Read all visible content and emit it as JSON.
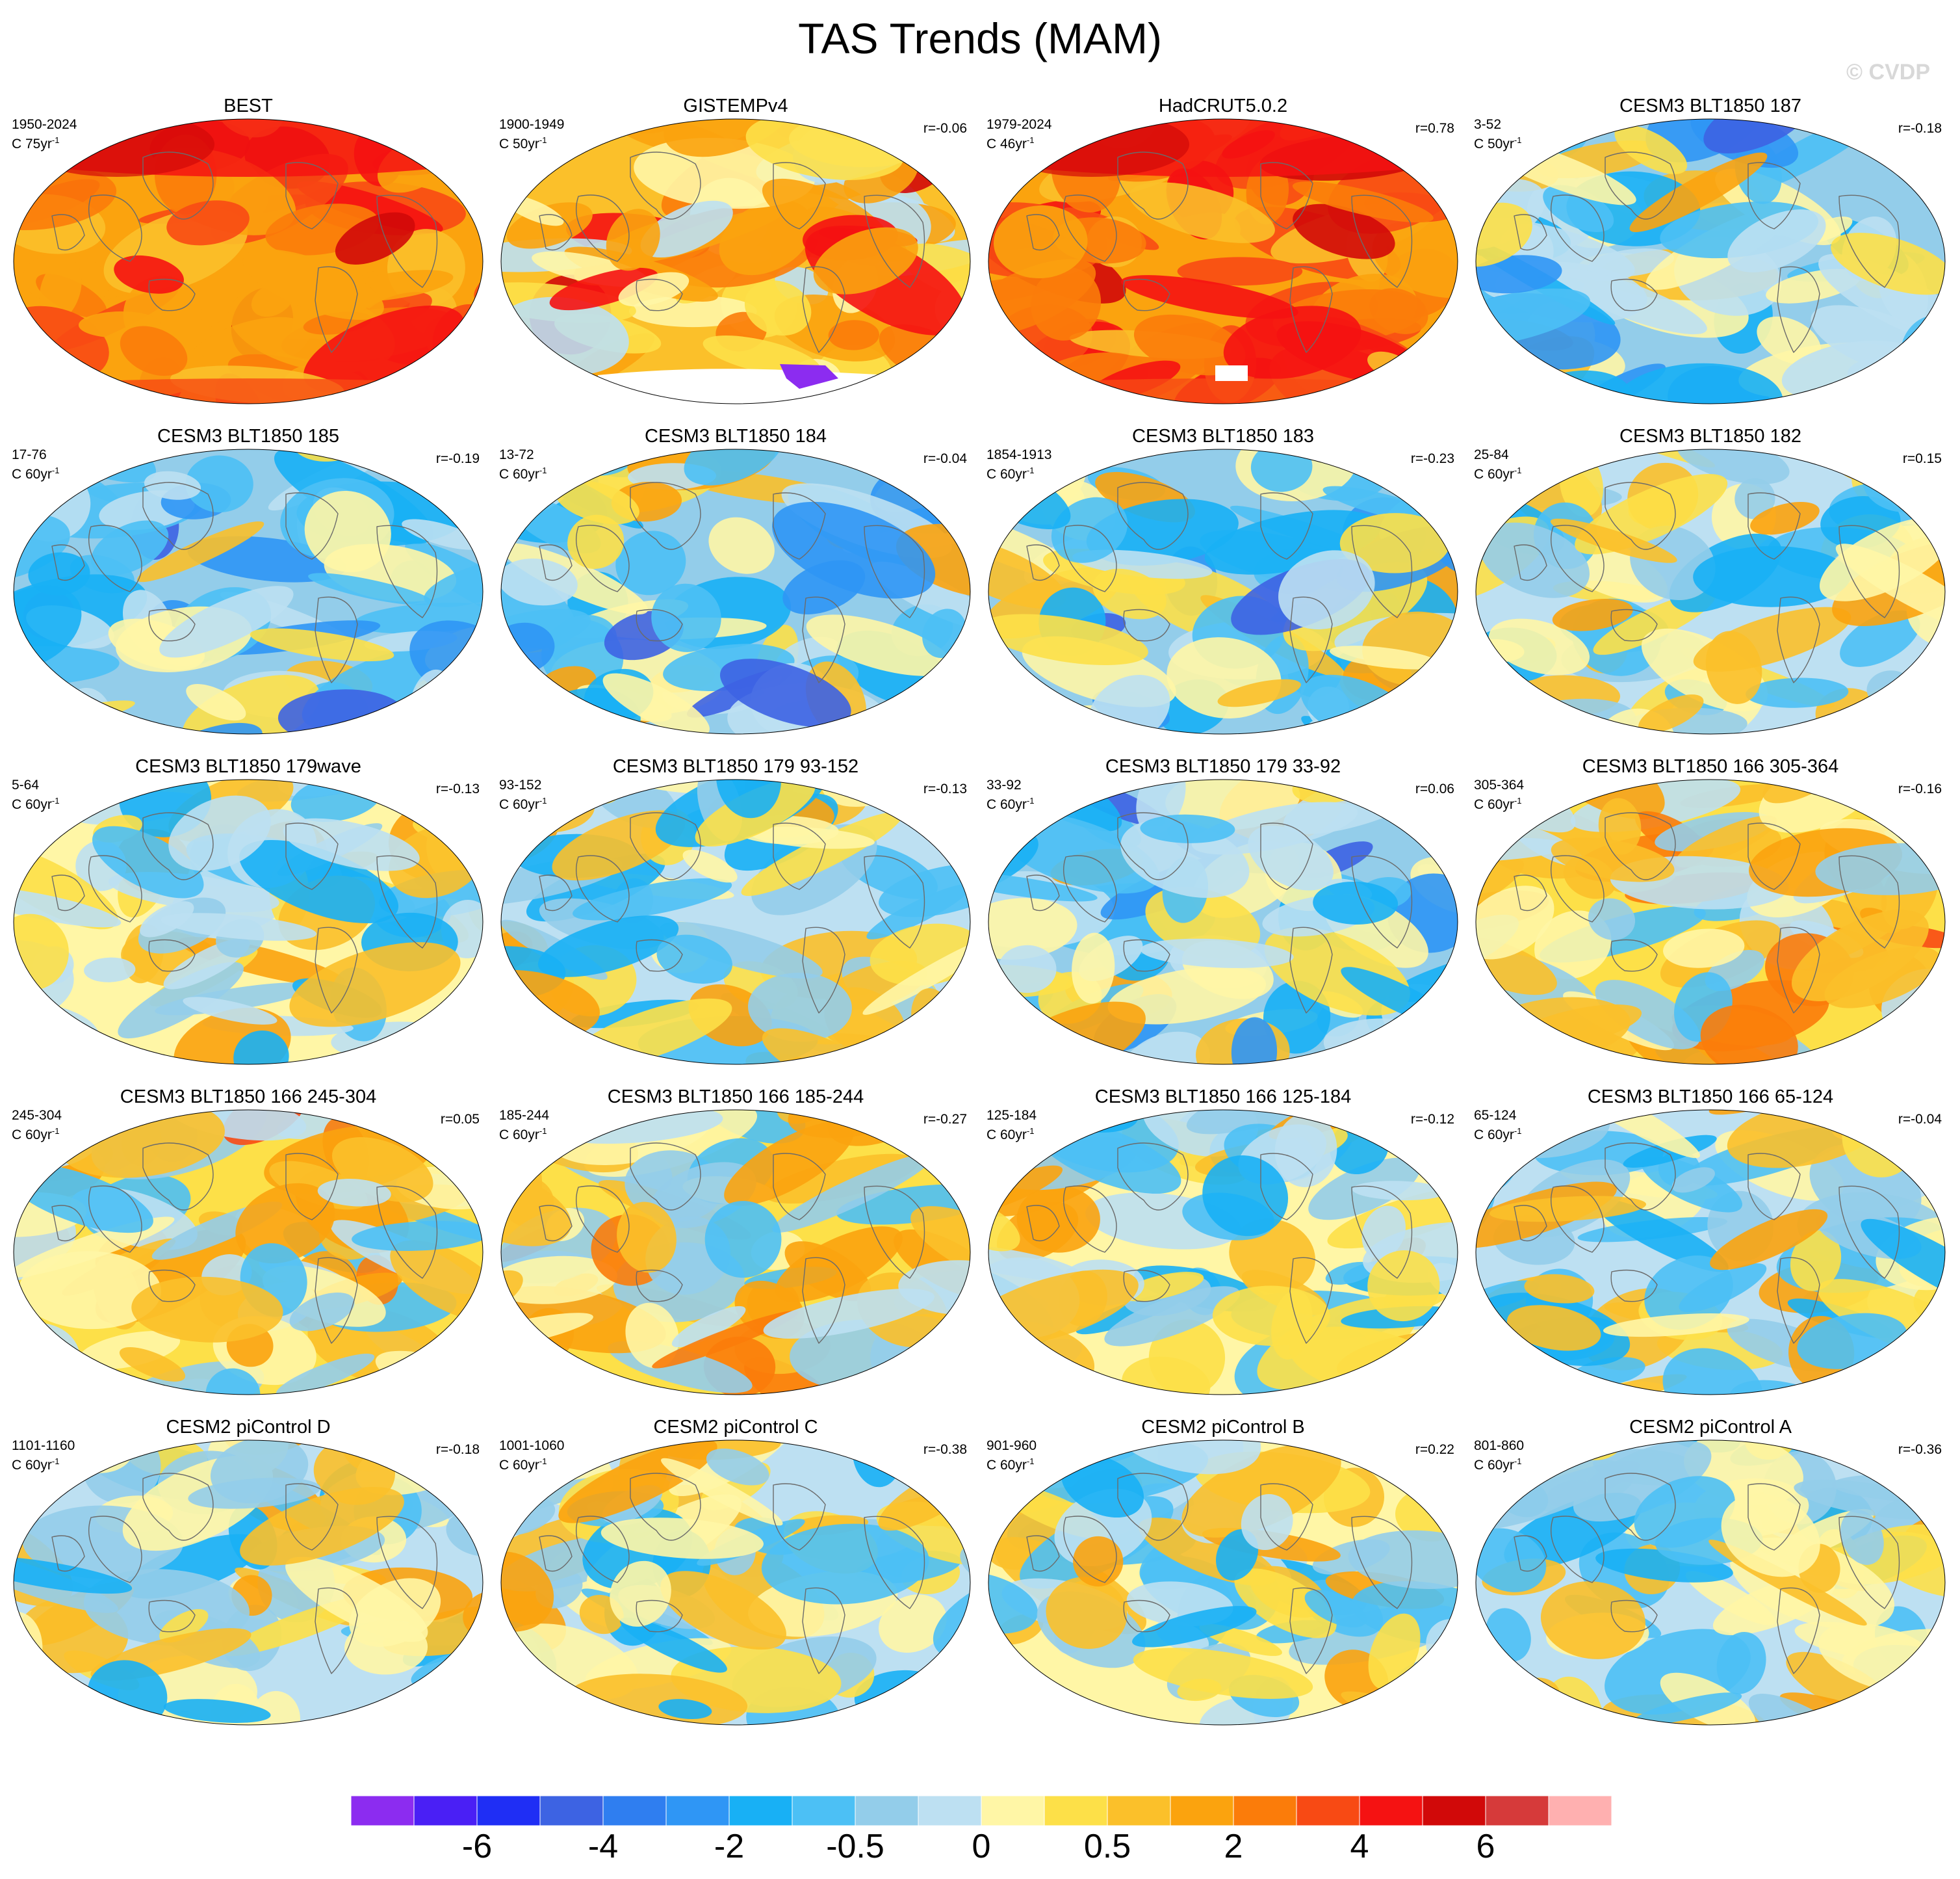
{
  "figure": {
    "title": "TAS Trends (MAM)",
    "watermark": "© CVDP"
  },
  "chart_data": {
    "type": "heatmap",
    "description_kind": "global map trend panels",
    "title": "TAS Trends (MAM)",
    "colorbar": {
      "colors": [
        "#8c2cf0",
        "#4a1ff5",
        "#1f2ef5",
        "#3d63e3",
        "#2f7ef0",
        "#2f96f5",
        "#18b0f5",
        "#4cc0f5",
        "#93cdea",
        "#bde0f2",
        "#fff6a6",
        "#fde048",
        "#fbc02a",
        "#fba30e",
        "#fb7c0a",
        "#f84a14",
        "#f51212",
        "#d10909",
        "#d63a3a",
        "#ffb0b0"
      ],
      "tick_labels": [
        "-6",
        "-4",
        "-2",
        "-0.5",
        "0",
        "0.5",
        "2",
        "4",
        "6"
      ],
      "tick_boundaries": [
        2,
        4,
        6,
        8,
        10,
        12,
        14,
        16,
        18
      ]
    },
    "panels": [
      {
        "title": "BEST",
        "period": "1950-2024",
        "units": "C 75yr",
        "units_exp": "-1",
        "r": "",
        "field": "warm_strong",
        "mask": "none"
      },
      {
        "title": "GISTEMPv4",
        "period": "1900-1949",
        "units": "C 50yr",
        "units_exp": "-1",
        "r": "r=-0.06",
        "field": "warm",
        "mask": "antarctica"
      },
      {
        "title": "HadCRUT5.0.2",
        "period": "1979-2024",
        "units": "C 46yr",
        "units_exp": "-1",
        "r": "r=0.78",
        "field": "warm_strong",
        "mask": "small"
      },
      {
        "title": "CESM3 BLT1850 187",
        "period": "3-52",
        "units": "C 50yr",
        "units_exp": "-1",
        "r": "r=-0.18",
        "field": "cool",
        "mask": "none"
      },
      {
        "title": "CESM3 BLT1850 185",
        "period": "17-76",
        "units": "C 60yr",
        "units_exp": "-1",
        "r": "r=-0.19",
        "field": "cool",
        "mask": "none"
      },
      {
        "title": "CESM3 BLT1850 184",
        "period": "13-72",
        "units": "C 60yr",
        "units_exp": "-1",
        "r": "r=-0.04",
        "field": "cool",
        "mask": "none"
      },
      {
        "title": "CESM3 BLT1850 183",
        "period": "1854-1913",
        "units": "C 60yr",
        "units_exp": "-1",
        "r": "r=-0.23",
        "field": "cool",
        "mask": "none"
      },
      {
        "title": "CESM3 BLT1850 182",
        "period": "25-84",
        "units": "C 60yr",
        "units_exp": "-1",
        "r": "r=0.15",
        "field": "mixed_cool",
        "mask": "none"
      },
      {
        "title": "CESM3 BLT1850 179wave",
        "period": "5-64",
        "units": "C 60yr",
        "units_exp": "-1",
        "r": "r=-0.13",
        "field": "mixed",
        "mask": "none"
      },
      {
        "title": "CESM3 BLT1850 179 93-152",
        "period": "93-152",
        "units": "C 60yr",
        "units_exp": "-1",
        "r": "r=-0.13",
        "field": "mixed_cool",
        "mask": "none"
      },
      {
        "title": "CESM3 BLT1850 179 33-92",
        "period": "33-92",
        "units": "C 60yr",
        "units_exp": "-1",
        "r": "r=0.06",
        "field": "cool",
        "mask": "none"
      },
      {
        "title": "CESM3 BLT1850 166 305-364",
        "period": "305-364",
        "units": "C 60yr",
        "units_exp": "-1",
        "r": "r=-0.16",
        "field": "mixed_warm",
        "mask": "none"
      },
      {
        "title": "CESM3 BLT1850 166 245-304",
        "period": "245-304",
        "units": "C 60yr",
        "units_exp": "-1",
        "r": "r=0.05",
        "field": "mixed_warm",
        "mask": "none"
      },
      {
        "title": "CESM3 BLT1850 166 185-244",
        "period": "185-244",
        "units": "C 60yr",
        "units_exp": "-1",
        "r": "r=-0.27",
        "field": "mixed_warm",
        "mask": "none"
      },
      {
        "title": "CESM3 BLT1850 166 125-184",
        "period": "125-184",
        "units": "C 60yr",
        "units_exp": "-1",
        "r": "r=-0.12",
        "field": "mixed",
        "mask": "none"
      },
      {
        "title": "CESM3 BLT1850 166 65-124",
        "period": "65-124",
        "units": "C 60yr",
        "units_exp": "-1",
        "r": "r=-0.04",
        "field": "mixed_cool",
        "mask": "none"
      },
      {
        "title": "CESM2 piControl D",
        "period": "1101-1160",
        "units": "C 60yr",
        "units_exp": "-1",
        "r": "r=-0.18",
        "field": "mixed_cool",
        "mask": "none"
      },
      {
        "title": "CESM2 piControl C",
        "period": "1001-1060",
        "units": "C 60yr",
        "units_exp": "-1",
        "r": "r=-0.38",
        "field": "mixed_cool",
        "mask": "none"
      },
      {
        "title": "CESM2 piControl B",
        "period": "901-960",
        "units": "C 60yr",
        "units_exp": "-1",
        "r": "r=0.22",
        "field": "mixed",
        "mask": "none"
      },
      {
        "title": "CESM2 piControl A",
        "period": "801-860",
        "units": "C 60yr",
        "units_exp": "-1",
        "r": "r=-0.36",
        "field": "mixed_cool",
        "mask": "none"
      }
    ]
  }
}
